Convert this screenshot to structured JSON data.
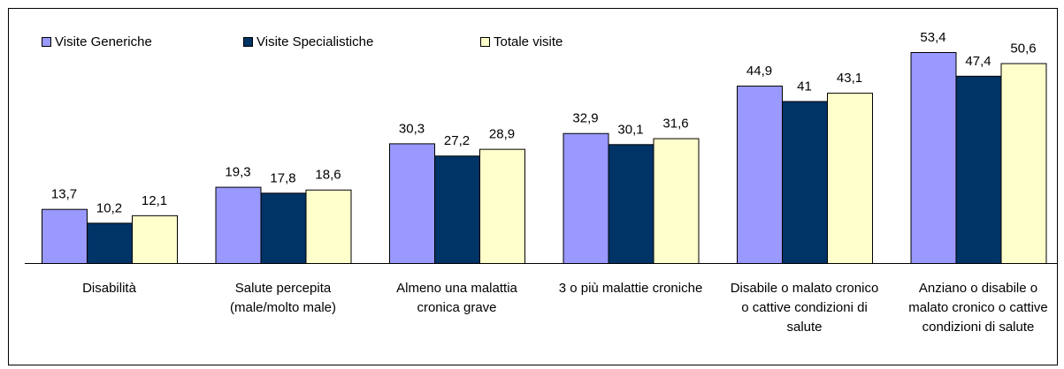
{
  "chart_data": {
    "type": "bar",
    "categories": [
      "Disabilità",
      "Salute percepita (male/molto male)",
      "Almeno una malattia cronica grave",
      "3 o più malattie croniche",
      "Disabile o malato cronico o cattive condizioni di salute",
      "Anziano o disabile o malato cronico o cattive condizioni di salute"
    ],
    "series": [
      {
        "name": "Visite Generiche",
        "color": "#9999ff",
        "values": [
          13.7,
          19.3,
          30.3,
          32.9,
          44.9,
          53.4
        ],
        "value_labels": [
          "13,7",
          "19,3",
          "30,3",
          "32,9",
          "44,9",
          "53,4"
        ]
      },
      {
        "name": "Visite Specialistiche",
        "color": "#003366",
        "values": [
          10.2,
          17.8,
          27.2,
          30.1,
          41,
          47.4
        ],
        "value_labels": [
          "10,2",
          "17,8",
          "27,2",
          "30,1",
          "41",
          "47,4"
        ]
      },
      {
        "name": "Totale visite",
        "color": "#ffffcc",
        "values": [
          12.1,
          18.6,
          28.9,
          31.6,
          43.1,
          50.6
        ],
        "value_labels": [
          "12,1",
          "18,6",
          "28,9",
          "31,6",
          "43,1",
          "50,6"
        ]
      }
    ],
    "legend": "top-left"
  }
}
